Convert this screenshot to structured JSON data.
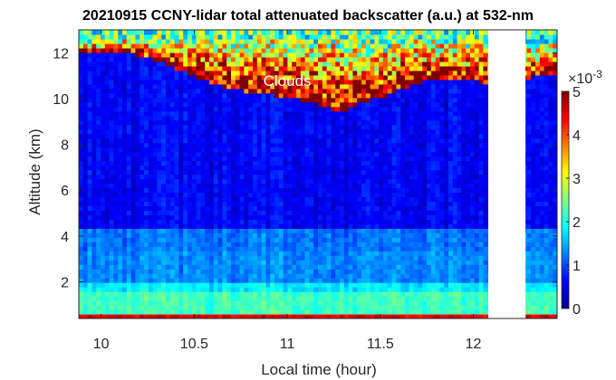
{
  "chart_data": {
    "type": "heatmap",
    "title": "20210915 CCNY-lidar total attenuated backscatter (a.u.) at 532-nm",
    "xlabel": "Local time (hour)",
    "ylabel": "Altitude (km)",
    "xlim": [
      9.88,
      12.45
    ],
    "ylim": [
      0.4,
      13.0
    ],
    "x_ticks": [
      {
        "value": 10,
        "label": "10"
      },
      {
        "value": 10.5,
        "label": "10.5"
      },
      {
        "value": 11,
        "label": "11"
      },
      {
        "value": 11.5,
        "label": "11.5"
      },
      {
        "value": 12,
        "label": "12"
      }
    ],
    "y_ticks": [
      {
        "value": 2,
        "label": "2"
      },
      {
        "value": 4,
        "label": "4"
      },
      {
        "value": 6,
        "label": "6"
      },
      {
        "value": 8,
        "label": "8"
      },
      {
        "value": 10,
        "label": "10"
      },
      {
        "value": 12,
        "label": "12"
      }
    ],
    "colorbar": {
      "colormap": "jet",
      "range": [
        0,
        5
      ],
      "scale_label": "×10",
      "scale_exponent": "-3",
      "ticks": [
        {
          "value": 0,
          "label": "0"
        },
        {
          "value": 1,
          "label": "1"
        },
        {
          "value": 2,
          "label": "2"
        },
        {
          "value": 3,
          "label": "3"
        },
        {
          "value": 4,
          "label": "4"
        },
        {
          "value": 5,
          "label": "5"
        }
      ]
    },
    "annotations": [
      {
        "text": "Clouds",
        "x": 11.0,
        "y": 10.55
      }
    ],
    "data_gap": {
      "x_start": 12.08,
      "x_end": 12.28
    },
    "cloud_base_km": [
      {
        "x": 9.88,
        "y": 12.1
      },
      {
        "x": 10.1,
        "y": 12.1
      },
      {
        "x": 10.25,
        "y": 11.8
      },
      {
        "x": 10.35,
        "y": 11.5
      },
      {
        "x": 10.5,
        "y": 11.0
      },
      {
        "x": 10.7,
        "y": 10.4
      },
      {
        "x": 10.9,
        "y": 10.2
      },
      {
        "x": 11.05,
        "y": 10.0
      },
      {
        "x": 11.15,
        "y": 9.8
      },
      {
        "x": 11.27,
        "y": 9.4
      },
      {
        "x": 11.4,
        "y": 9.8
      },
      {
        "x": 11.55,
        "y": 10.2
      },
      {
        "x": 11.7,
        "y": 10.7
      },
      {
        "x": 11.85,
        "y": 10.9
      },
      {
        "x": 12.0,
        "y": 10.8
      },
      {
        "x": 12.08,
        "y": 10.6
      },
      {
        "x": 12.28,
        "y": 10.9
      },
      {
        "x": 12.45,
        "y": 11.1
      }
    ],
    "cloud_top_km": [
      {
        "x": 9.88,
        "y": 12.3
      },
      {
        "x": 10.1,
        "y": 12.6
      },
      {
        "x": 10.3,
        "y": 12.4
      },
      {
        "x": 10.5,
        "y": 12.7
      },
      {
        "x": 10.7,
        "y": 12.5
      },
      {
        "x": 10.9,
        "y": 12.8
      },
      {
        "x": 11.1,
        "y": 12.4
      },
      {
        "x": 11.3,
        "y": 12.7
      },
      {
        "x": 11.5,
        "y": 12.2
      },
      {
        "x": 11.7,
        "y": 12.6
      },
      {
        "x": 11.9,
        "y": 12.4
      },
      {
        "x": 12.08,
        "y": 12.5
      },
      {
        "x": 12.28,
        "y": 12.2
      },
      {
        "x": 12.45,
        "y": 12.4
      }
    ],
    "boundary_layer": [
      {
        "y_min": 0.4,
        "y_max": 0.55,
        "value": 4.5
      },
      {
        "y_min": 0.55,
        "y_max": 1.6,
        "value": 2.2
      },
      {
        "y_min": 1.6,
        "y_max": 2.0,
        "value": 1.8
      },
      {
        "y_min": 2.0,
        "y_max": 3.3,
        "value": 1.3
      },
      {
        "y_min": 3.3,
        "y_max": 4.4,
        "value": 1.2
      },
      {
        "y_min": 4.4,
        "y_max": 13.0,
        "value": 0.6
      }
    ]
  }
}
